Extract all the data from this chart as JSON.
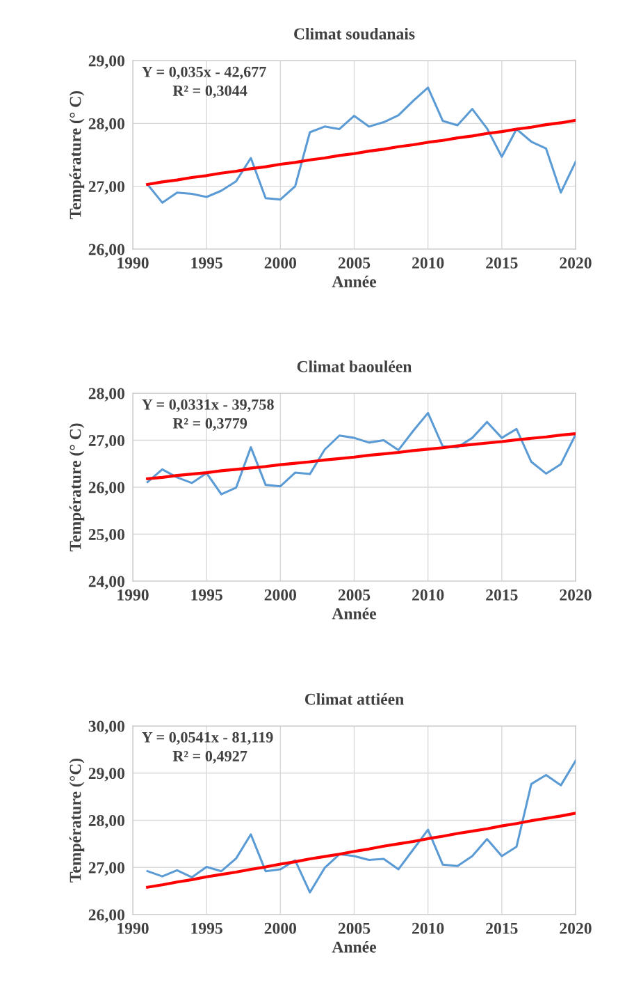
{
  "chart_data": [
    {
      "type": "line",
      "title": "Climat soudanais",
      "xlabel": "Année",
      "ylabel": "Température (° C)",
      "annotations": [
        "Y = 0,035x - 42,677",
        "R² = 0,3044"
      ],
      "x": [
        1991,
        1992,
        1993,
        1994,
        1995,
        1996,
        1997,
        1998,
        1999,
        2000,
        2001,
        2002,
        2003,
        2004,
        2005,
        2006,
        2007,
        2008,
        2009,
        2010,
        2011,
        2012,
        2013,
        2014,
        2015,
        2016,
        2017,
        2018,
        2019,
        2020
      ],
      "series": [
        {
          "color": "#5b9bd5",
          "values": [
            27.03,
            26.74,
            26.9,
            26.88,
            26.83,
            26.93,
            27.08,
            27.45,
            26.81,
            26.79,
            27.0,
            27.86,
            27.95,
            27.91,
            28.12,
            27.95,
            28.02,
            28.13,
            28.36,
            28.57,
            28.04,
            27.97,
            28.23,
            27.92,
            27.47,
            27.91,
            27.71,
            27.6,
            26.9,
            27.39
          ]
        },
        {
          "color": "#ff0000",
          "values": [
            27.03,
            27.07,
            27.1,
            27.14,
            27.17,
            27.21,
            27.24,
            27.28,
            27.31,
            27.35,
            27.38,
            27.42,
            27.45,
            27.49,
            27.52,
            27.56,
            27.59,
            27.63,
            27.66,
            27.7,
            27.73,
            27.77,
            27.8,
            27.84,
            27.87,
            27.91,
            27.94,
            27.98,
            28.01,
            28.05
          ]
        }
      ],
      "xlim": [
        1990,
        2020
      ],
      "xticks": [
        1990,
        1995,
        2000,
        2005,
        2010,
        2015,
        2020
      ],
      "ylim": [
        26,
        29
      ],
      "yticks": [
        {
          "value": 26,
          "label": "26,00"
        },
        {
          "value": 27,
          "label": "27,00"
        },
        {
          "value": 28,
          "label": "28,00"
        },
        {
          "value": 29,
          "label": "29,00"
        }
      ],
      "grid": true
    },
    {
      "type": "line",
      "title": "Climat baouléen",
      "xlabel": "Année",
      "ylabel": "Température (° C)",
      "annotations": [
        "Y = 0,0331x - 39,758",
        "R² = 0,3779"
      ],
      "x": [
        1991,
        1992,
        1993,
        1994,
        1995,
        1996,
        1997,
        1998,
        1999,
        2000,
        2001,
        2002,
        2003,
        2004,
        2005,
        2006,
        2007,
        2008,
        2009,
        2010,
        2011,
        2012,
        2013,
        2014,
        2015,
        2016,
        2017,
        2018,
        2019,
        2020
      ],
      "series": [
        {
          "color": "#5b9bd5",
          "values": [
            26.11,
            26.38,
            26.21,
            26.09,
            26.3,
            25.85,
            25.99,
            26.85,
            26.05,
            26.02,
            26.31,
            26.28,
            26.8,
            27.1,
            27.05,
            26.95,
            27.0,
            26.79,
            27.2,
            27.58,
            26.87,
            26.85,
            27.05,
            27.39,
            27.05,
            27.24,
            26.54,
            26.29,
            26.49,
            27.12
          ]
        },
        {
          "color": "#ff0000",
          "values": [
            26.18,
            26.21,
            26.25,
            26.28,
            26.31,
            26.35,
            26.38,
            26.41,
            26.44,
            26.48,
            26.51,
            26.54,
            26.58,
            26.61,
            26.64,
            26.68,
            26.71,
            26.74,
            26.78,
            26.81,
            26.84,
            26.88,
            26.91,
            26.94,
            26.97,
            27.01,
            27.04,
            27.07,
            27.11,
            27.14
          ]
        }
      ],
      "xlim": [
        1990,
        2020
      ],
      "xticks": [
        1990,
        1995,
        2000,
        2005,
        2010,
        2015,
        2020
      ],
      "ylim": [
        24,
        28
      ],
      "yticks": [
        {
          "value": 24,
          "label": "24,00"
        },
        {
          "value": 25,
          "label": "25,00"
        },
        {
          "value": 26,
          "label": "26,00"
        },
        {
          "value": 27,
          "label": "27,00"
        },
        {
          "value": 28,
          "label": "28,00"
        }
      ],
      "grid": true
    },
    {
      "type": "line",
      "title": "Climat attiéen",
      "xlabel": "Année",
      "ylabel": "Température (°C)",
      "annotations": [
        "Y = 0,0541x - 81,119",
        "R² = 0,4927"
      ],
      "x": [
        1991,
        1992,
        1993,
        1994,
        1995,
        1996,
        1997,
        1998,
        1999,
        2000,
        2001,
        2002,
        2003,
        2004,
        2005,
        2006,
        2007,
        2008,
        2009,
        2010,
        2011,
        2012,
        2013,
        2014,
        2015,
        2016,
        2017,
        2018,
        2019,
        2020
      ],
      "series": [
        {
          "color": "#5b9bd5",
          "values": [
            26.92,
            26.81,
            26.94,
            26.79,
            27.01,
            26.92,
            27.19,
            27.7,
            26.92,
            26.96,
            27.15,
            26.47,
            26.99,
            27.28,
            27.24,
            27.16,
            27.18,
            26.96,
            27.38,
            27.8,
            27.06,
            27.03,
            27.24,
            27.6,
            27.24,
            27.44,
            28.77,
            28.96,
            28.74,
            29.26
          ]
        },
        {
          "color": "#ff0000",
          "values": [
            26.58,
            26.63,
            26.69,
            26.74,
            26.8,
            26.85,
            26.9,
            26.96,
            27.01,
            27.07,
            27.12,
            27.18,
            27.23,
            27.28,
            27.34,
            27.39,
            27.45,
            27.5,
            27.55,
            27.61,
            27.66,
            27.72,
            27.77,
            27.82,
            27.88,
            27.93,
            27.99,
            28.04,
            28.09,
            28.15
          ]
        }
      ],
      "xlim": [
        1990,
        2020
      ],
      "xticks": [
        1990,
        1995,
        2000,
        2005,
        2010,
        2015,
        2020
      ],
      "ylim": [
        26,
        30
      ],
      "yticks": [
        {
          "value": 26,
          "label": "26,00"
        },
        {
          "value": 27,
          "label": "27,00"
        },
        {
          "value": 28,
          "label": "28,00"
        },
        {
          "value": 29,
          "label": "29,00"
        },
        {
          "value": 30,
          "label": "30,00"
        }
      ],
      "grid": true
    }
  ]
}
